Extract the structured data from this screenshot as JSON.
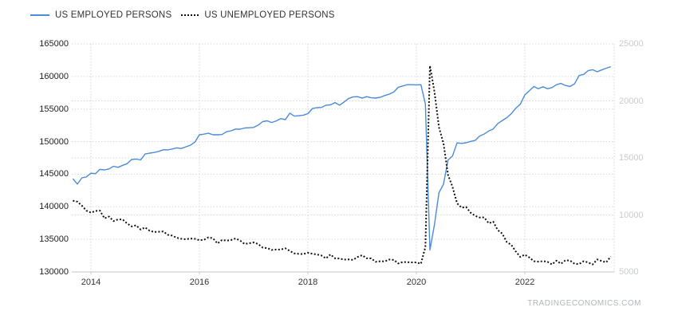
{
  "legend": {
    "items": [
      {
        "label": "US EMPLOYED PERSONS"
      },
      {
        "label": "US UNEMPLOYED PERSONS"
      }
    ]
  },
  "watermark": "TRADINGECONOMICS.COM",
  "colors": {
    "employed_line": "#4b8bd8",
    "unemployed_line": "#111111",
    "grid": "#d6d6d6",
    "axis_line": "#c6c6c6",
    "left_axis_text": "#222222",
    "right_axis_text": "#c8cbce",
    "x_axis_text": "#333333"
  },
  "chart_data": {
    "type": "line",
    "title": "",
    "frequency": "monthly",
    "x_start_year": 2013,
    "x_start_month": 9,
    "x_end_year": 2023,
    "x_end_month": 8,
    "x_tick_labels": [
      "2014",
      "2016",
      "2018",
      "2020",
      "2022"
    ],
    "left_axis": {
      "min": 130000,
      "max": 165000,
      "tick_labels": [
        "165000",
        "160000",
        "155000",
        "150000",
        "145000",
        "140000",
        "135000",
        "130000"
      ]
    },
    "right_axis": {
      "min": 5000,
      "max": 25000,
      "tick_labels": [
        "25000",
        "20000",
        "15000",
        "10000",
        "5000"
      ]
    },
    "grid": true,
    "legend_position": "top-left",
    "series": [
      {
        "name": "US EMPLOYED PERSONS",
        "axis": "left",
        "style": "solid",
        "color": "#4b8bd8",
        "values": [
          144303,
          143485,
          144443,
          144586,
          145150,
          145093,
          145742,
          145669,
          145814,
          146221,
          146050,
          146368,
          146607,
          147260,
          147331,
          147190,
          148104,
          148231,
          148333,
          148509,
          148748,
          148722,
          148866,
          149043,
          148942,
          149197,
          149444,
          149929,
          151049,
          151145,
          151280,
          151052,
          151052,
          151090,
          151517,
          151655,
          151926,
          151902,
          152085,
          152127,
          152178,
          152527,
          153065,
          153185,
          152938,
          153181,
          153531,
          153368,
          154367,
          153912,
          153972,
          154062,
          154290,
          155081,
          155211,
          155248,
          155593,
          155638,
          155997,
          155592,
          156072,
          156631,
          156852,
          156900,
          156660,
          156901,
          156730,
          156684,
          156795,
          157073,
          157283,
          157603,
          158343,
          158540,
          158729,
          158735,
          158714,
          158732,
          155772,
          133370,
          137287,
          142151,
          143458,
          147186,
          147796,
          149798,
          149732,
          149830,
          150031,
          150183,
          150848,
          151160,
          151620,
          151943,
          152751,
          153237,
          153671,
          154274,
          155139,
          155732,
          157174,
          157808,
          158458,
          158105,
          158426,
          158111,
          158290,
          158732,
          158936,
          158608,
          158470,
          158872,
          160138,
          160315,
          160892,
          161031,
          160721,
          160994,
          161262,
          161484
        ]
      },
      {
        "name": "US UNEMPLOYED PERSONS",
        "axis": "right",
        "style": "dotted",
        "color": "#111111",
        "values": [
          11251,
          11161,
          10814,
          10376,
          10202,
          10349,
          10380,
          9702,
          9859,
          9460,
          9608,
          9599,
          9262,
          8990,
          9090,
          8717,
          8903,
          8610,
          8504,
          8526,
          8555,
          8259,
          8179,
          7991,
          7907,
          7870,
          7928,
          7907,
          7784,
          7820,
          8034,
          7953,
          7500,
          7798,
          7749,
          7800,
          7939,
          7755,
          7455,
          7513,
          7586,
          7451,
          7134,
          7088,
          6928,
          6965,
          6964,
          7075,
          6846,
          6631,
          6577,
          6567,
          6682,
          6595,
          6529,
          6443,
          6189,
          6531,
          6197,
          6177,
          6083,
          6099,
          6053,
          6318,
          6472,
          6193,
          6186,
          5888,
          5940,
          5922,
          6093,
          6054,
          5739,
          5867,
          5861,
          5842,
          5835,
          5717,
          7185,
          23090,
          20787,
          17691,
          16274,
          13502,
          12467,
          11018,
          10637,
          10700,
          10196,
          9918,
          9771,
          9786,
          9267,
          9404,
          8668,
          8365,
          7623,
          7378,
          6789,
          6314,
          6518,
          6266,
          5942,
          5904,
          5941,
          5897,
          5655,
          5996,
          5723,
          6027,
          5998,
          5717,
          5694,
          5936,
          5839,
          5657,
          6097,
          5959,
          5841,
          6355
        ]
      }
    ]
  }
}
